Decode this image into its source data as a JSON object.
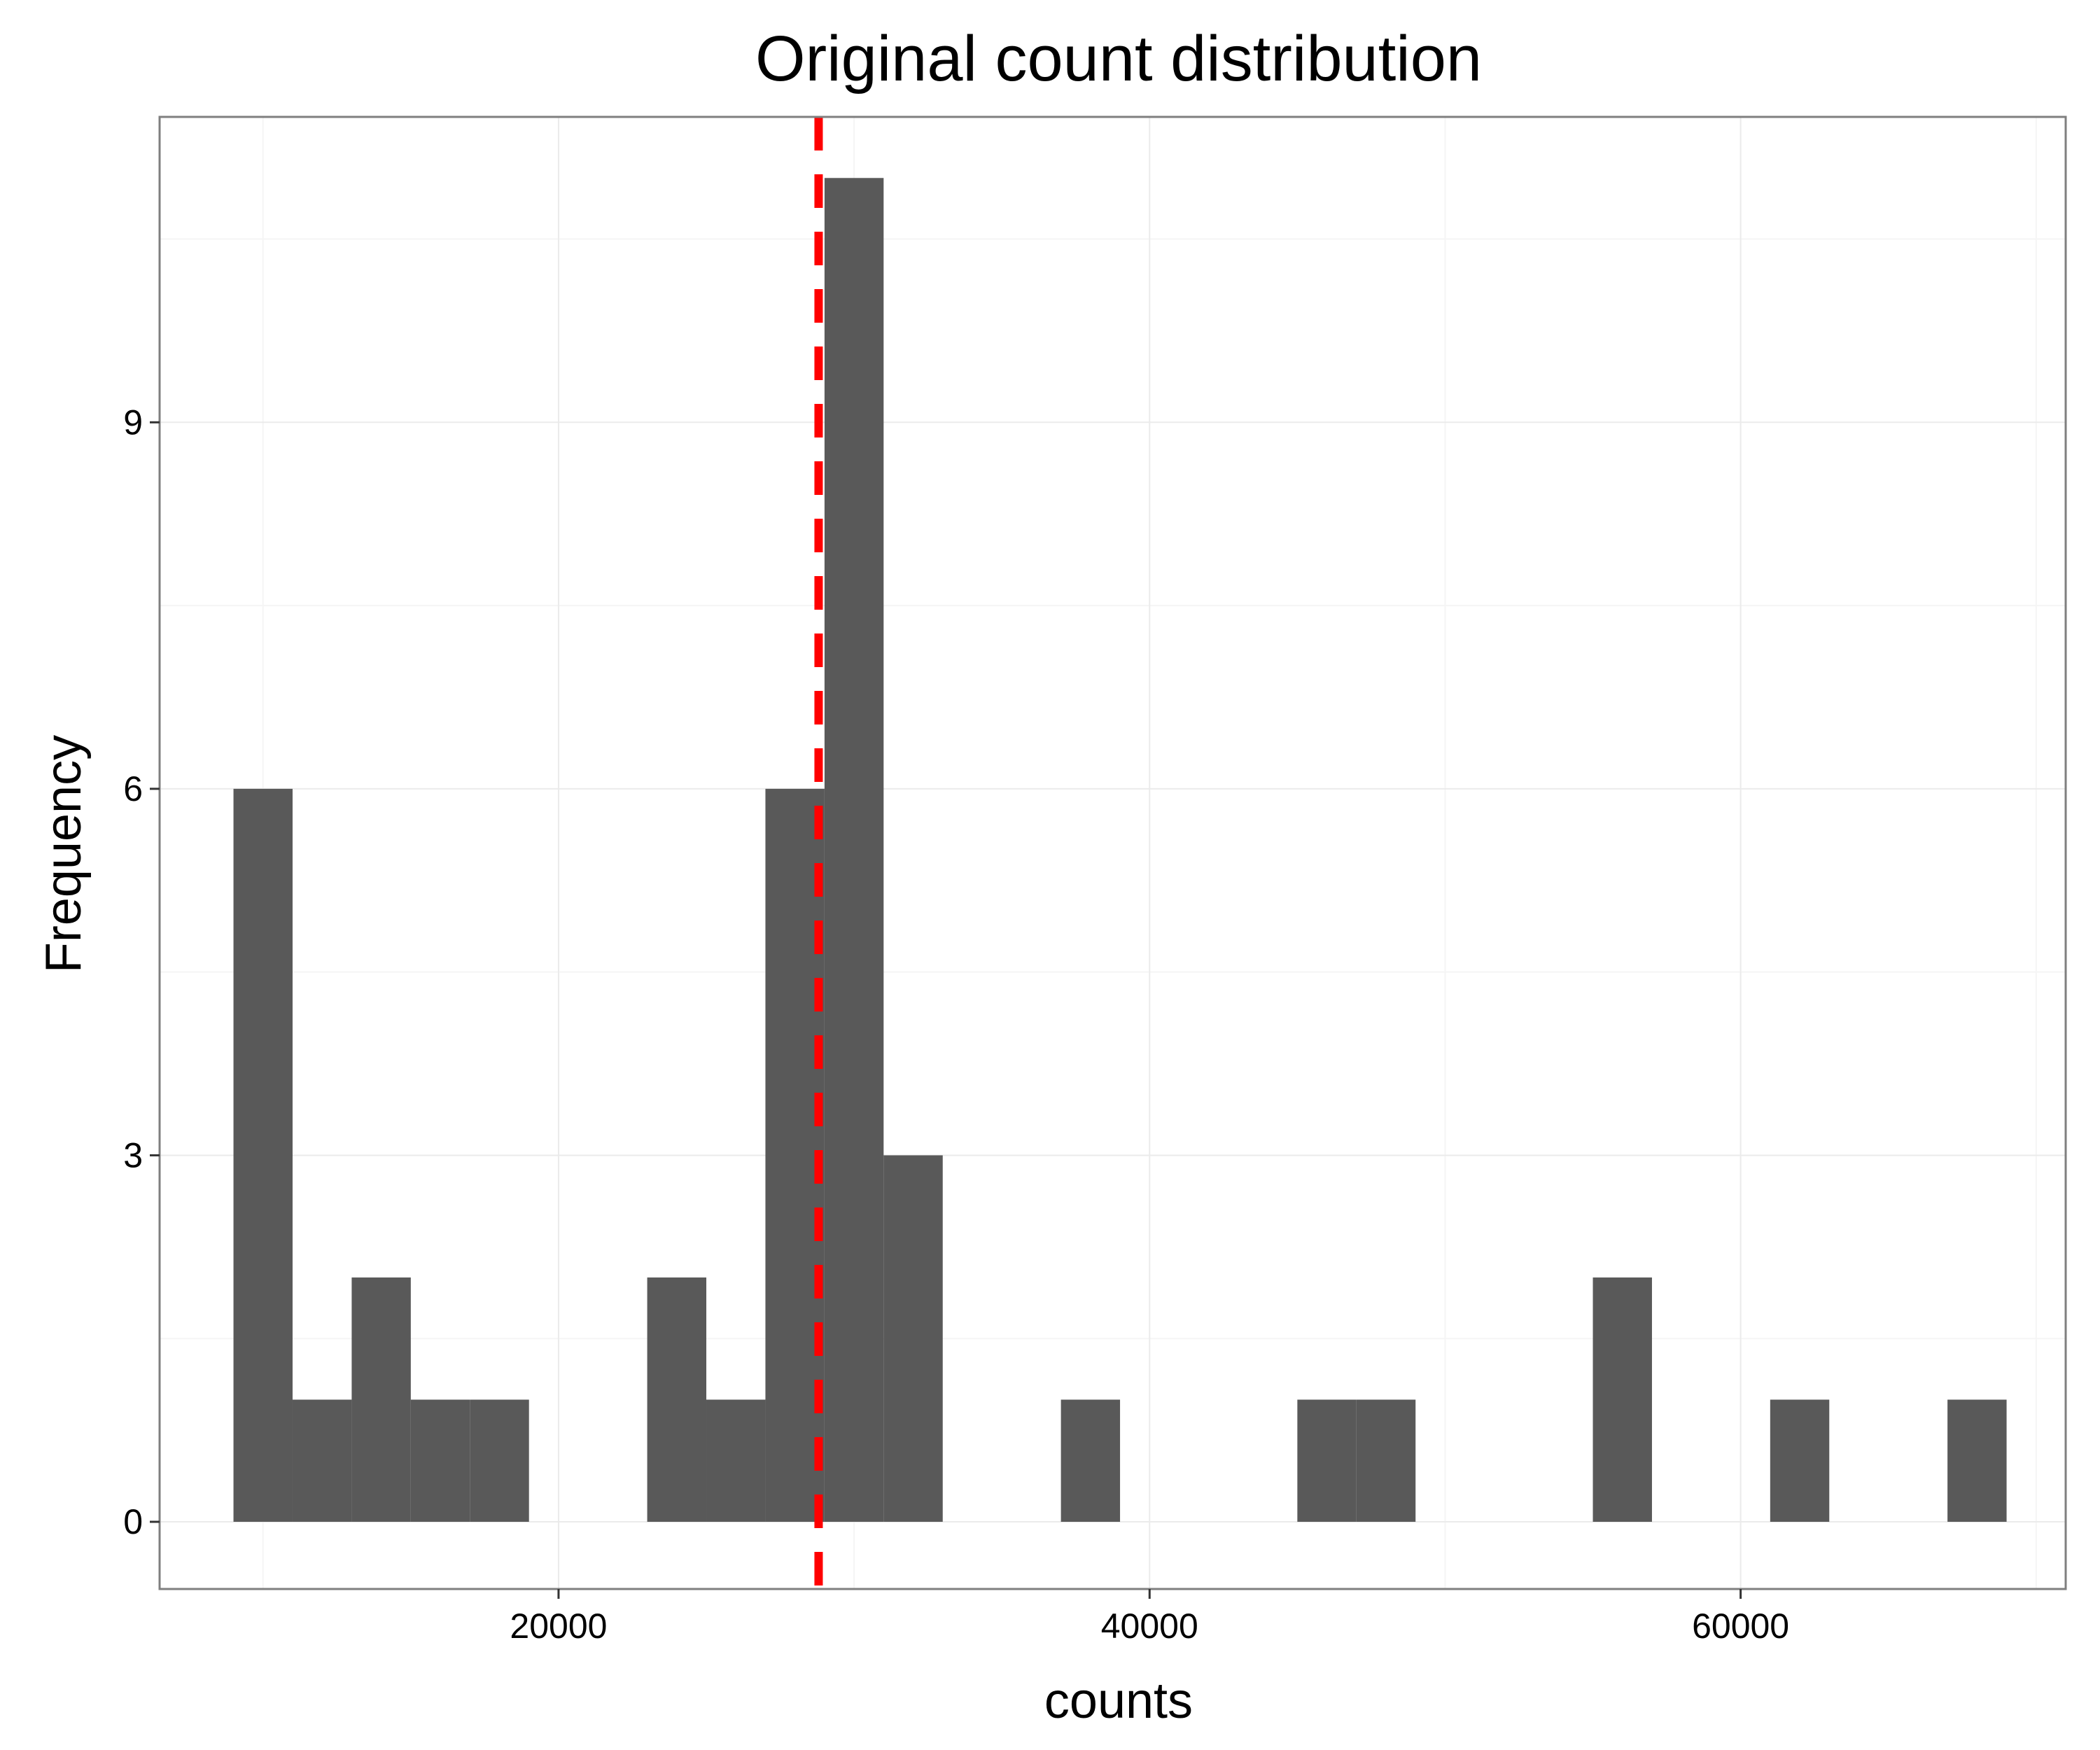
{
  "chart_data": {
    "type": "bar",
    "title": "Original count distribution",
    "xlabel": "counts",
    "ylabel": "Frequency",
    "xlim": [
      6500,
      71000
    ],
    "ylim": [
      -0.55,
      11.5
    ],
    "x_ticks": [
      20000,
      40000,
      60000
    ],
    "x_tick_labels": [
      "20000",
      "40000",
      "60000"
    ],
    "y_ticks": [
      0,
      3,
      6,
      9
    ],
    "y_tick_labels": [
      "0",
      "3",
      "6",
      "9"
    ],
    "grid": true,
    "bin_width": 2000,
    "bins": [
      {
        "x0": 9000,
        "x1": 11000,
        "count": 6
      },
      {
        "x0": 11000,
        "x1": 13000,
        "count": 1
      },
      {
        "x0": 13000,
        "x1": 15000,
        "count": 2
      },
      {
        "x0": 15000,
        "x1": 17000,
        "count": 1
      },
      {
        "x0": 17000,
        "x1": 19000,
        "count": 1
      },
      {
        "x0": 23000,
        "x1": 25000,
        "count": 2
      },
      {
        "x0": 25000,
        "x1": 27000,
        "count": 1
      },
      {
        "x0": 27000,
        "x1": 29000,
        "count": 6
      },
      {
        "x0": 29000,
        "x1": 31000,
        "count": 11
      },
      {
        "x0": 31000,
        "x1": 33000,
        "count": 3
      },
      {
        "x0": 37000,
        "x1": 39000,
        "count": 1
      },
      {
        "x0": 45000,
        "x1": 47000,
        "count": 1
      },
      {
        "x0": 47000,
        "x1": 49000,
        "count": 1
      },
      {
        "x0": 55000,
        "x1": 57000,
        "count": 2
      },
      {
        "x0": 61000,
        "x1": 63000,
        "count": 1
      },
      {
        "x0": 67000,
        "x1": 69000,
        "count": 1
      }
    ],
    "reference_line": {
      "x": 28800,
      "style": "dashed",
      "color": "#ff0000"
    },
    "colors": {
      "bar": "#595959",
      "panel_border": "#7f7f7f",
      "grid_major": "#ebebeb",
      "grid_minor": "#f5f5f5",
      "background": "#ffffff"
    }
  }
}
